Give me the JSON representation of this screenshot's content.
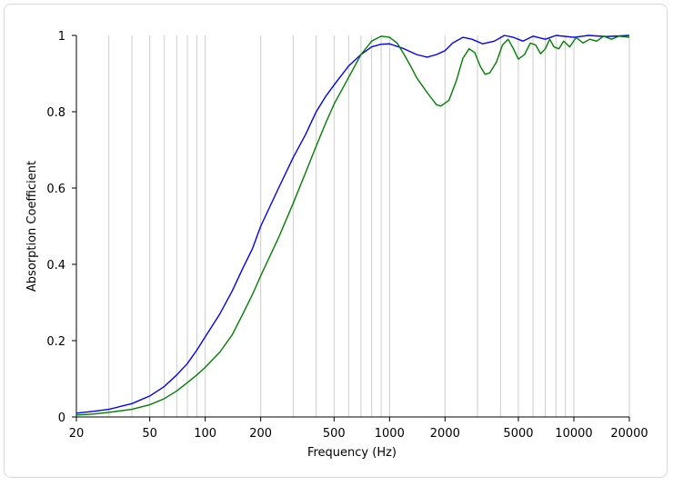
{
  "chart_data": {
    "type": "line",
    "title": "",
    "xlabel": "Frequency (Hz)",
    "ylabel": "Absorption Coefficient",
    "xscale": "log",
    "xlim": [
      20,
      20000
    ],
    "ylim": [
      0,
      1
    ],
    "grid": "vertical",
    "legend": "none",
    "x_ticks": [
      20,
      50,
      100,
      200,
      500,
      1000,
      2000,
      5000,
      10000,
      20000
    ],
    "x_tick_labels": [
      "20",
      "50",
      "100",
      "200",
      "500",
      "1000",
      "2000",
      "5000",
      "10000",
      "20000"
    ],
    "y_ticks": [
      0,
      0.2,
      0.4,
      0.6,
      0.8,
      1
    ],
    "y_tick_labels": [
      "0",
      "0.2",
      "0.4",
      "0.6",
      "0.8",
      "1"
    ],
    "series": [
      {
        "color": "#0000ff",
        "points": [
          [
            20,
            0.01
          ],
          [
            25,
            0.015
          ],
          [
            30,
            0.02
          ],
          [
            35,
            0.028
          ],
          [
            40,
            0.035
          ],
          [
            50,
            0.055
          ],
          [
            60,
            0.08
          ],
          [
            70,
            0.11
          ],
          [
            80,
            0.14
          ],
          [
            90,
            0.175
          ],
          [
            100,
            0.21
          ],
          [
            120,
            0.27
          ],
          [
            140,
            0.33
          ],
          [
            160,
            0.39
          ],
          [
            180,
            0.44
          ],
          [
            200,
            0.5
          ],
          [
            250,
            0.6
          ],
          [
            300,
            0.68
          ],
          [
            350,
            0.74
          ],
          [
            400,
            0.8
          ],
          [
            450,
            0.84
          ],
          [
            500,
            0.87
          ],
          [
            600,
            0.92
          ],
          [
            700,
            0.95
          ],
          [
            800,
            0.97
          ],
          [
            900,
            0.977
          ],
          [
            1000,
            0.978
          ],
          [
            1200,
            0.965
          ],
          [
            1400,
            0.95
          ],
          [
            1600,
            0.943
          ],
          [
            1800,
            0.95
          ],
          [
            2000,
            0.96
          ],
          [
            2200,
            0.98
          ],
          [
            2500,
            0.995
          ],
          [
            2800,
            0.99
          ],
          [
            3200,
            0.978
          ],
          [
            3700,
            0.985
          ],
          [
            4200,
            1.0
          ],
          [
            4700,
            0.995
          ],
          [
            5300,
            0.985
          ],
          [
            6000,
            0.998
          ],
          [
            7000,
            0.99
          ],
          [
            8000,
            1.0
          ],
          [
            10000,
            0.995
          ],
          [
            12000,
            1.0
          ],
          [
            15000,
            0.997
          ],
          [
            20000,
            1.0
          ]
        ]
      },
      {
        "color": "#008000",
        "points": [
          [
            20,
            0.005
          ],
          [
            25,
            0.008
          ],
          [
            30,
            0.012
          ],
          [
            40,
            0.02
          ],
          [
            50,
            0.032
          ],
          [
            60,
            0.048
          ],
          [
            70,
            0.068
          ],
          [
            80,
            0.09
          ],
          [
            90,
            0.11
          ],
          [
            100,
            0.13
          ],
          [
            120,
            0.17
          ],
          [
            140,
            0.215
          ],
          [
            160,
            0.27
          ],
          [
            180,
            0.32
          ],
          [
            200,
            0.37
          ],
          [
            250,
            0.47
          ],
          [
            300,
            0.56
          ],
          [
            350,
            0.64
          ],
          [
            400,
            0.71
          ],
          [
            450,
            0.77
          ],
          [
            500,
            0.82
          ],
          [
            600,
            0.89
          ],
          [
            700,
            0.95
          ],
          [
            800,
            0.985
          ],
          [
            900,
            0.998
          ],
          [
            1000,
            0.995
          ],
          [
            1100,
            0.98
          ],
          [
            1200,
            0.95
          ],
          [
            1300,
            0.92
          ],
          [
            1400,
            0.89
          ],
          [
            1600,
            0.85
          ],
          [
            1800,
            0.818
          ],
          [
            1900,
            0.815
          ],
          [
            2100,
            0.83
          ],
          [
            2300,
            0.88
          ],
          [
            2500,
            0.94
          ],
          [
            2700,
            0.965
          ],
          [
            2900,
            0.955
          ],
          [
            3100,
            0.92
          ],
          [
            3300,
            0.898
          ],
          [
            3500,
            0.902
          ],
          [
            3800,
            0.93
          ],
          [
            4100,
            0.975
          ],
          [
            4400,
            0.99
          ],
          [
            4700,
            0.965
          ],
          [
            5000,
            0.938
          ],
          [
            5400,
            0.95
          ],
          [
            5800,
            0.98
          ],
          [
            6200,
            0.975
          ],
          [
            6600,
            0.952
          ],
          [
            7000,
            0.965
          ],
          [
            7400,
            0.99
          ],
          [
            7800,
            0.97
          ],
          [
            8300,
            0.965
          ],
          [
            8800,
            0.985
          ],
          [
            9500,
            0.97
          ],
          [
            10300,
            0.995
          ],
          [
            11200,
            0.98
          ],
          [
            12200,
            0.99
          ],
          [
            13300,
            0.985
          ],
          [
            14500,
            0.998
          ],
          [
            16000,
            0.99
          ],
          [
            17500,
            0.998
          ],
          [
            20000,
            0.995
          ]
        ]
      }
    ]
  }
}
